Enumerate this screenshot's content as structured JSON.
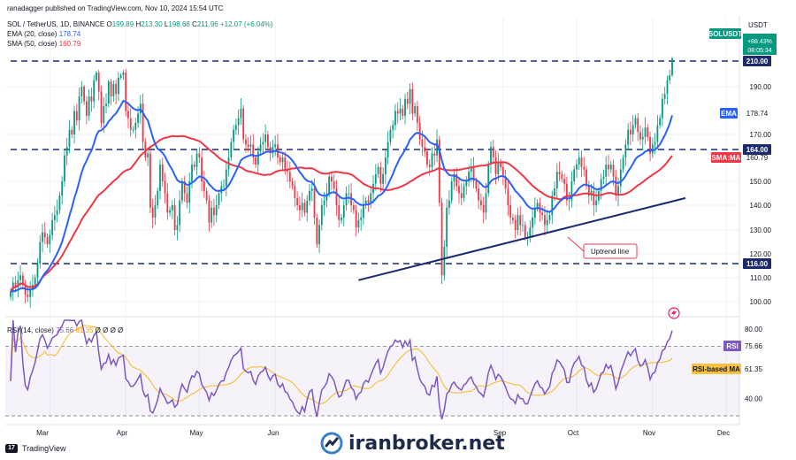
{
  "header": {
    "author_line": "ranadagger published on TradingView.com, Nov 10, 2024 15:54 UTC",
    "symbol": "SOL / TetherUS, 1D, BINANCE",
    "ohlc": {
      "o_label": "O",
      "o": "199.89",
      "h_label": "H",
      "h": "213.30",
      "l_label": "L",
      "l": "198.68",
      "c_label": "C",
      "c": "211.96",
      "change": "+12.07 (+6.04%)"
    },
    "ema_label": "EMA (20, close)",
    "ema_value": "178.74",
    "sma_label": "SMA (50, close)",
    "sma_value": "160.79",
    "rsi_label": "RSI (14, close)",
    "rsi_value": "75.66",
    "rsi_ma_value": "61.35",
    "rsi_extra": "Ø Ø Ø Ø"
  },
  "currency": "USDT",
  "tags": {
    "symbol_tag": "SOLUSDT",
    "symbol_pct": "+88.43%",
    "symbol_time": "08:05:34",
    "level_210": "210.00",
    "ema_tag": "EMA",
    "ema_val": "178.74",
    "level_164": "164.00",
    "sma_tag": "SMA:MA",
    "sma_val": "160.79",
    "level_116": "116.00",
    "rsi_tag": "RSI",
    "rsi_val": "75.66",
    "rsi_ma_tag": "RSI-based MA",
    "rsi_ma_val": "61.35"
  },
  "annotation": "Uptrend line",
  "watermark": "iranbroker.net",
  "tradingview": "TradingView",
  "colors": {
    "up": "#089981",
    "down": "#f23645",
    "ema": "#2962ff",
    "sma": "#f23645",
    "rsi": "#7e57c2",
    "rsi_ma": "#f5c242",
    "level": "#1e2a6e",
    "trend": "#1e2a6e"
  },
  "chart_data": [
    {
      "type": "candlestick",
      "title": "SOL / TetherUS, 1D, BINANCE",
      "x_tick_labels": [
        "Mar",
        "Apr",
        "May",
        "Jun",
        "Sep",
        "Oct",
        "Nov",
        "Dec"
      ],
      "y_tick_labels": [
        "100.00",
        "110.00",
        "120.00",
        "130.00",
        "140.00",
        "150.00",
        "170.00",
        "190.00"
      ],
      "ylim": [
        95,
        220
      ],
      "horizontal_levels": [
        210,
        164,
        116
      ],
      "trend_line": {
        "label": "Uptrend line",
        "from": {
          "x": "Jul 5",
          "y": 109
        },
        "to": {
          "x": "Nov 15",
          "y": 143
        }
      },
      "series": [
        {
          "name": "SOL/USDT",
          "note": "approximate daily closes, Feb 14 to Nov 10, 2024",
          "closes": [
            104,
            108,
            106,
            109,
            111,
            107,
            103,
            102,
            105,
            107,
            110,
            116,
            125,
            129,
            127,
            124,
            128,
            134,
            136,
            138,
            144,
            150,
            161,
            165,
            172,
            170,
            180,
            176,
            186,
            190,
            184,
            178,
            186,
            184,
            195,
            201,
            188,
            175,
            182,
            183,
            194,
            186,
            192,
            187,
            197,
            199,
            201,
            180,
            177,
            172,
            172,
            175,
            179,
            183,
            167,
            160,
            162,
            139,
            135,
            140,
            146,
            157,
            150,
            145,
            137,
            138,
            140,
            130,
            132,
            142,
            150,
            145,
            141,
            150,
            157,
            156,
            162,
            160,
            150,
            146,
            142,
            133,
            139,
            136,
            140,
            145,
            148,
            148,
            155,
            160,
            167,
            172,
            174,
            177,
            181,
            168,
            166,
            165,
            166,
            160,
            157,
            163,
            166,
            167,
            170,
            165,
            162,
            165,
            166,
            160,
            158,
            160,
            155,
            154,
            150,
            148,
            143,
            140,
            138,
            141,
            137,
            142,
            146,
            147,
            135,
            124,
            132,
            140,
            142,
            145,
            152,
            150,
            147,
            140,
            134,
            135,
            140,
            145,
            145,
            140,
            138,
            131,
            134,
            135,
            140,
            142,
            141,
            145,
            149,
            153,
            156,
            149,
            153,
            160,
            167,
            172,
            174,
            180,
            179,
            181,
            178,
            185,
            183,
            189,
            179,
            182,
            175,
            168,
            165,
            163,
            157,
            156,
            162,
            161,
            168,
            141,
            111,
            123,
            139,
            142,
            150,
            153,
            148,
            145,
            143,
            148,
            150,
            154,
            156,
            150,
            147,
            142,
            140,
            137,
            145,
            157,
            165,
            160,
            153,
            158,
            156,
            152,
            147,
            140,
            135,
            134,
            130,
            136,
            132,
            132,
            127,
            127,
            131,
            135,
            139,
            141,
            137,
            136,
            132,
            134,
            136,
            144,
            147,
            154,
            153,
            151,
            149,
            142,
            142,
            150,
            155,
            157,
            160,
            156,
            155,
            148,
            144,
            146,
            140,
            142,
            146,
            151,
            152,
            157,
            155,
            157,
            152,
            144,
            148,
            155,
            160,
            166,
            172,
            170,
            174,
            177,
            171,
            168,
            169,
            173,
            169,
            162,
            166,
            167,
            174,
            177,
            185,
            187,
            195,
            199,
            212
          ]
        },
        {
          "name": "EMA (20, close)",
          "last": 178.74
        },
        {
          "name": "SMA (50, close)",
          "last": 160.79
        }
      ]
    },
    {
      "type": "line",
      "title": "RSI (14, close)",
      "y_tick_labels": [
        "80.00",
        "40.00"
      ],
      "ylim": [
        28,
        85
      ],
      "band": [
        30,
        70
      ],
      "series": [
        {
          "name": "RSI (14, close)",
          "last": 75.66
        },
        {
          "name": "RSI-based MA",
          "last": 61.35
        }
      ]
    }
  ]
}
